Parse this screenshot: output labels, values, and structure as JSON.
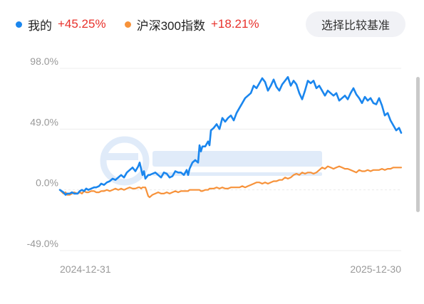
{
  "legend": [
    {
      "label": "我的",
      "value": "+45.25%",
      "color": "#1a86ee"
    },
    {
      "label": "沪深300指数",
      "value": "+18.21%",
      "color": "#f7923a"
    }
  ],
  "compare_button": "选择比较基准",
  "chart_data": {
    "type": "line",
    "title": "",
    "xlabel": "",
    "ylabel": "",
    "x_tick_labels": [
      "2024-12-31",
      "2025-12-30"
    ],
    "y_tick_labels": [
      "98.0%",
      "49.0%",
      "0.0%",
      "-49.0%"
    ],
    "y_ticks": [
      98,
      49,
      0,
      -49
    ],
    "ylim": [
      -49,
      98
    ],
    "grid": true,
    "x": [
      0,
      5,
      8,
      10,
      14,
      17,
      20,
      25,
      28,
      31,
      34,
      37,
      40,
      44,
      48,
      51,
      55,
      58,
      62,
      66,
      70,
      74,
      78,
      82,
      86,
      90,
      94,
      98,
      102,
      106,
      110,
      112,
      114,
      116,
      118,
      120,
      124,
      126,
      130,
      134,
      138,
      142,
      146,
      150,
      154,
      158,
      162,
      166,
      170,
      174,
      178,
      180,
      182,
      186,
      190,
      194,
      196,
      198,
      200,
      204,
      208,
      210,
      212,
      216,
      220,
      224,
      228,
      232,
      236,
      240,
      244,
      248,
      252,
      256,
      260,
      264,
      268,
      272,
      276,
      280,
      284,
      288,
      292,
      296,
      300,
      304,
      308,
      312,
      316,
      320,
      324,
      328,
      332,
      336,
      340,
      344,
      348,
      352,
      356,
      360,
      364,
      368,
      372,
      376,
      380,
      384,
      388,
      392,
      396,
      400,
      404,
      408,
      412,
      416,
      420,
      424,
      428,
      432,
      436,
      440,
      444,
      448,
      452,
      456,
      460,
      464,
      468,
      472,
      476,
      479
    ],
    "series": [
      {
        "name": "我的",
        "color": "#1a86ee",
        "values": [
          0,
          -2,
          -4,
          -3,
          -3,
          -2,
          -3,
          -3,
          -1,
          0,
          -1,
          1,
          0,
          1,
          2,
          2,
          3,
          5,
          4,
          6,
          7,
          9,
          8,
          10,
          12,
          10,
          14,
          16,
          18,
          15,
          19,
          22,
          17,
          12,
          15,
          9,
          12,
          12,
          13,
          14,
          12,
          10,
          14,
          13,
          10,
          11,
          15,
          14,
          14,
          12,
          16,
          12,
          17,
          22,
          24,
          22,
          36,
          31,
          35,
          35,
          39,
          36,
          48,
          50,
          53,
          49,
          58,
          55,
          58,
          60,
          56,
          62,
          66,
          70,
          74,
          76,
          78,
          84,
          82,
          86,
          90,
          87,
          80,
          84,
          89,
          83,
          80,
          85,
          88,
          91,
          84,
          88,
          85,
          78,
          73,
          80,
          88,
          86,
          88,
          82,
          84,
          80,
          76,
          80,
          78,
          76,
          78,
          72,
          74,
          76,
          73,
          78,
          82,
          77,
          74,
          70,
          75,
          72,
          74,
          70,
          69,
          74,
          68,
          60,
          62,
          56,
          52,
          48,
          50,
          46
        ]
      },
      {
        "name": "沪深300指数",
        "color": "#f7923a",
        "values": [
          0,
          -3,
          -2,
          -4,
          -4,
          -3,
          -2,
          -3,
          -2,
          -3,
          -1,
          -2,
          -2,
          -1,
          -1,
          -2,
          -2,
          -1,
          -1,
          0,
          -1,
          0,
          1,
          0,
          1,
          0,
          1,
          2,
          1,
          1,
          2,
          2,
          1,
          2,
          2,
          2,
          -5,
          -6,
          -4,
          -3,
          -2,
          -3,
          -3,
          -2,
          -3,
          -2,
          -1,
          -2,
          -1,
          -1,
          -1,
          -1,
          0,
          0,
          0,
          0,
          0,
          -1,
          -1,
          0,
          0,
          1,
          1,
          1,
          2,
          1,
          2,
          1,
          1,
          2,
          2,
          2,
          2,
          3,
          2,
          3,
          4,
          5,
          6,
          6,
          5,
          6,
          5,
          6,
          7,
          7,
          8,
          8,
          10,
          9,
          10,
          12,
          13,
          12,
          14,
          13,
          14,
          14,
          13,
          14,
          16,
          18,
          17,
          19,
          18,
          17,
          18,
          19,
          18,
          17,
          17,
          16,
          15,
          14,
          16,
          15,
          15,
          16,
          15,
          16,
          16,
          16,
          17,
          16,
          17,
          17,
          18,
          18,
          18,
          18
        ]
      }
    ]
  }
}
